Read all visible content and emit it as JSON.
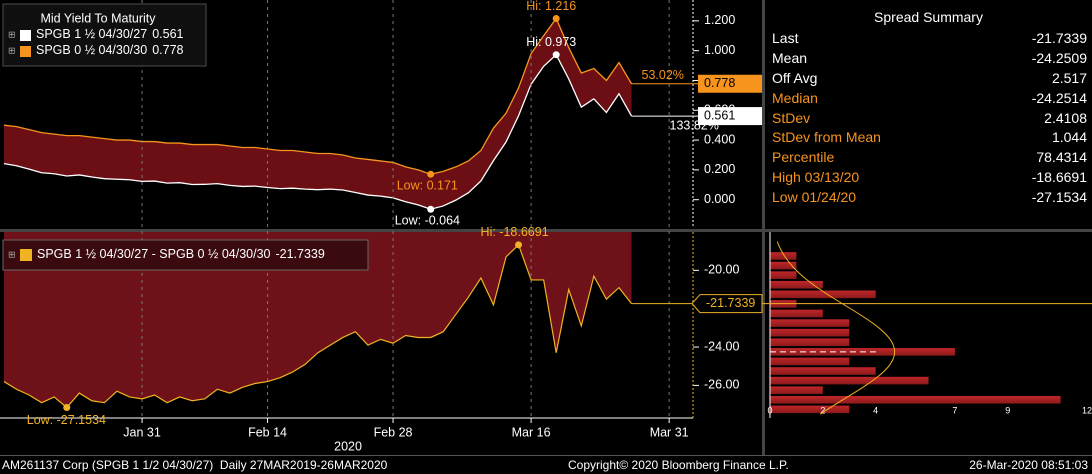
{
  "chart_data": [
    {
      "type": "line",
      "legend_title": "Mid Yield To Maturity",
      "series": [
        {
          "name": "SPGB 1 ½ 04/30/27",
          "color": "#ffffff",
          "values": [
            0.242,
            0.228,
            0.205,
            0.181,
            0.174,
            0.159,
            0.166,
            0.152,
            0.141,
            0.137,
            0.134,
            0.123,
            0.125,
            0.111,
            0.114,
            0.102,
            0.103,
            0.108,
            0.096,
            0.089,
            0.091,
            0.082,
            0.074,
            0.077,
            0.071,
            0.067,
            0.071,
            0.065,
            0.048,
            0.031,
            0.024,
            0.012,
            -0.014,
            -0.035,
            -0.064,
            -0.042,
            -0.003,
            0.046,
            0.126,
            0.262,
            0.387,
            0.563,
            0.775,
            0.895,
            0.973,
            0.81,
            0.621,
            0.677,
            0.585,
            0.711,
            0.561,
            null,
            null,
            null
          ]
        },
        {
          "name": "SPGB 0 ½ 04/30/30",
          "color": "#f7941d",
          "values": [
            0.5,
            0.49,
            0.47,
            0.45,
            0.44,
            0.43,
            0.43,
            0.42,
            0.41,
            0.4,
            0.4,
            0.39,
            0.39,
            0.38,
            0.38,
            0.37,
            0.37,
            0.37,
            0.36,
            0.35,
            0.35,
            0.34,
            0.33,
            0.33,
            0.32,
            0.31,
            0.31,
            0.3,
            0.28,
            0.27,
            0.26,
            0.25,
            0.22,
            0.2,
            0.171,
            0.19,
            0.22,
            0.26,
            0.33,
            0.48,
            0.58,
            0.75,
            0.98,
            1.1,
            1.216,
            1.02,
            0.85,
            0.88,
            0.8,
            0.92,
            0.778,
            null,
            null,
            null
          ]
        }
      ],
      "ylim": [
        -0.19,
        1.34
      ],
      "yticks": [
        {
          "value": 0,
          "label": "0.000"
        },
        {
          "value": 0.2,
          "label": "0.200"
        },
        {
          "value": 0.4,
          "label": "0.400"
        },
        {
          "value": 0.6,
          "label": "0.600"
        },
        {
          "value": 0.8,
          "label": "0.800"
        },
        {
          "value": 1,
          "label": "1.000"
        },
        {
          "value": 1.2,
          "label": "1.200"
        }
      ],
      "annotations": [
        "Hi: 1.216",
        "Hi: 0.973",
        "Low: 0.171",
        "Low: -0.064",
        "53.02%",
        "133.82%"
      ]
    },
    {
      "type": "area",
      "series": [
        {
          "name": "SPGB 1 ½ 04/30/27 - SPGB 0 ½ 04/30/30",
          "color": "#f0b323",
          "values": [
            -25.8,
            -26.2,
            -26.5,
            -26.9,
            -26.6,
            -27.1534,
            -26.4,
            -26.8,
            -26.9,
            -26.3,
            -26.6,
            -26.7,
            -26.5,
            -26.9,
            -26.6,
            -26.8,
            -26.7,
            -26.2,
            -26.4,
            -26.1,
            -25.9,
            -25.8,
            -25.6,
            -25.3,
            -24.9,
            -24.3,
            -23.9,
            -23.5,
            -23.2,
            -23.9,
            -23.6,
            -23.8,
            -23.4,
            -23.5,
            -23.5,
            -23.2,
            -22.3,
            -21.4,
            -20.4,
            -21.8,
            -19.3,
            -18.6691,
            -20.5,
            -20.5,
            -24.3,
            -21.0,
            -22.9,
            -20.3,
            -21.5,
            -20.9,
            -21.7339,
            null,
            null,
            null
          ]
        }
      ],
      "categories": [
        null,
        null,
        null,
        null,
        null,
        null,
        null,
        null,
        null,
        null,
        null,
        "Jan 31",
        null,
        null,
        null,
        null,
        null,
        null,
        null,
        null,
        null,
        "Feb 14",
        null,
        null,
        null,
        null,
        null,
        null,
        null,
        null,
        null,
        "Feb 28",
        null,
        null,
        null,
        null,
        null,
        null,
        null,
        null,
        null,
        null,
        "Mar 16",
        null,
        null,
        null,
        null,
        null,
        null,
        null,
        null,
        null,
        null,
        "Mar 31"
      ],
      "xlabel": "2020",
      "ylim": [
        -27.7,
        -18.0
      ],
      "yticks": [
        {
          "value": -20,
          "label": "-20.00"
        },
        {
          "value": -24,
          "label": "-24.00"
        },
        {
          "value": -26,
          "label": "-26.00"
        }
      ],
      "annotations": [
        "Hi: -18.6691",
        "Low: -27.1534"
      ],
      "grid": true
    },
    {
      "type": "histogram",
      "orientation": "horizontal",
      "color": "#8b1a1a",
      "bins": [
        -27.5,
        -27,
        -26.5,
        -26,
        -25.5,
        -25,
        -24.5,
        -24,
        -23.5,
        -23,
        -22.5,
        -22,
        -21.5,
        -21,
        -20.5,
        -20,
        -19.5,
        -19,
        -18.5
      ],
      "counts": [
        3,
        11,
        2,
        6,
        4,
        3,
        7,
        3,
        3,
        3,
        2,
        1,
        4,
        2,
        1,
        1,
        1,
        0
      ],
      "xlim": [
        0,
        12
      ],
      "xticks": [
        0,
        2,
        4,
        7,
        9,
        12
      ]
    }
  ],
  "summary": {
    "title": "Spread Summary",
    "rows": [
      [
        "Last",
        "-21.7339"
      ],
      [
        "Mean",
        "-24.2509"
      ],
      [
        "Off Avg",
        "2.517"
      ],
      [
        "Median",
        "-24.2514"
      ],
      [
        "StDev",
        "2.4108"
      ],
      [
        "StDev from Mean",
        "1.044"
      ],
      [
        "Percentile",
        "78.4314"
      ],
      [
        "High 03/13/20",
        "-18.6691"
      ],
      [
        "Low 01/24/20",
        "-27.1534"
      ]
    ]
  },
  "footer": {
    "left": "AM261137 Corp (SPGB 1 1/2 04/30/27)  Daily 27MAR2019-26MAR2020",
    "center": "Copyright© 2020 Bloomberg Finance L.P.",
    "right": "26-Mar-2020 08:51:03"
  }
}
